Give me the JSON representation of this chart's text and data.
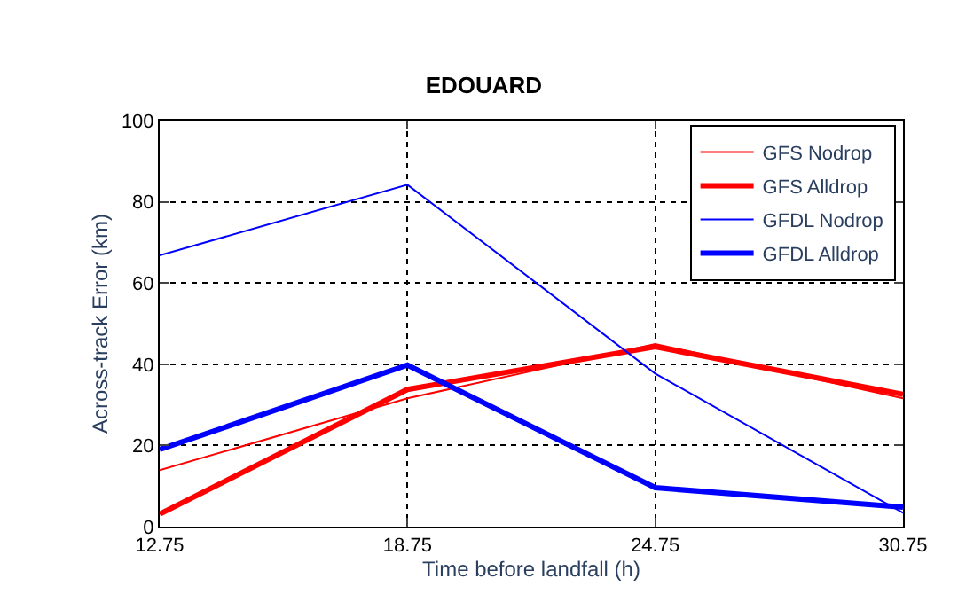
{
  "chart_data": {
    "type": "line",
    "title": "EDOUARD",
    "xlabel": "Time before landfall (h)",
    "ylabel": "Across-track Error (km)",
    "x": [
      12.75,
      18.75,
      24.75,
      30.75
    ],
    "series": [
      {
        "name": "GFS Nodrop",
        "color": "#ff0000",
        "values": [
          13.9,
          31.6,
          45,
          31.6
        ]
      },
      {
        "name": "GFS Alldrop",
        "color": "#ff0000",
        "values": [
          3.1,
          33.8,
          44.3,
          32.6
        ]
      },
      {
        "name": "GFDL Nodrop",
        "color": "#0000ff",
        "values": [
          66.8,
          84.2,
          37.7,
          3.4
        ]
      },
      {
        "name": "GFDL Alldrop",
        "color": "#0000ff",
        "values": [
          19,
          39.8,
          9.6,
          4.8
        ]
      }
    ],
    "xlim": [
      12.75,
      30.75
    ],
    "xticks": [
      12.75,
      18.75,
      24.75,
      30.75
    ],
    "ylim": [
      0,
      100
    ],
    "yticks": [
      0,
      20,
      40,
      60,
      80,
      100
    ],
    "grid": true,
    "legend": "top right",
    "line_style": "solid",
    "marker": "none"
  }
}
